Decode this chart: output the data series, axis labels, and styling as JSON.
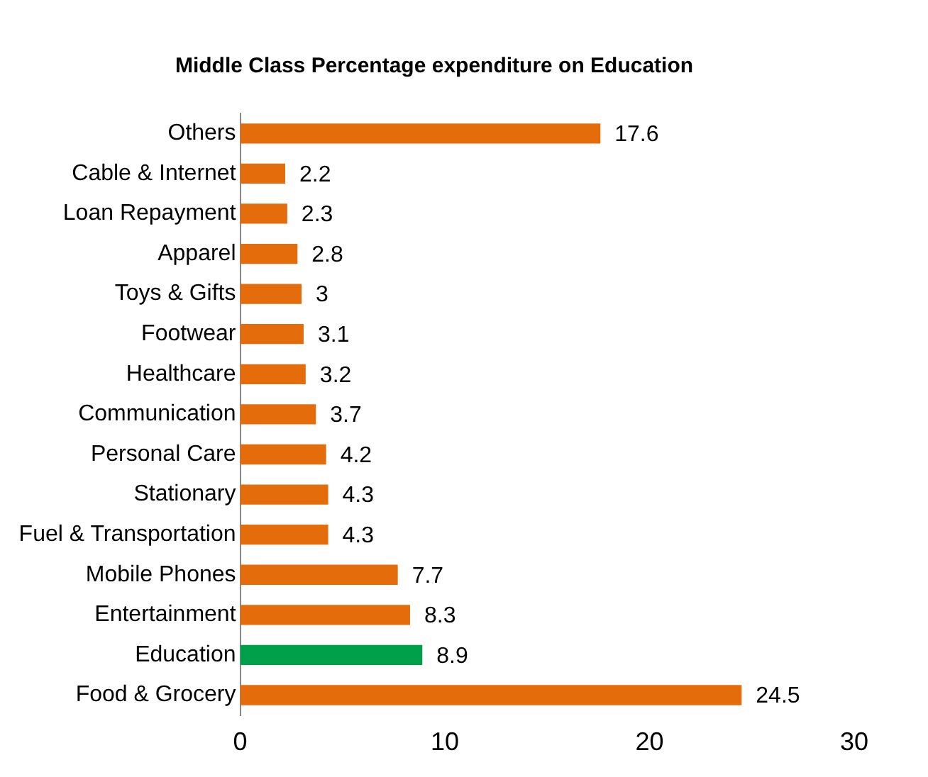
{
  "chart_data": {
    "type": "bar",
    "orientation": "horizontal",
    "title": "Middle Class Percentage expenditure on Education",
    "categories": [
      "Others",
      "Cable & Internet",
      "Loan Repayment",
      "Apparel",
      "Toys & Gifts",
      "Footwear",
      "Healthcare",
      "Communication",
      "Personal Care",
      "Stationary",
      "Fuel & Transportation",
      "Mobile Phones",
      "Entertainment",
      "Education",
      "Food & Grocery"
    ],
    "values": [
      17.6,
      2.2,
      2.3,
      2.8,
      3,
      3.1,
      3.2,
      3.7,
      4.2,
      4.3,
      4.3,
      7.7,
      8.3,
      8.9,
      24.5
    ],
    "colors": [
      "#e46c0a",
      "#e46c0a",
      "#e46c0a",
      "#e46c0a",
      "#e46c0a",
      "#e46c0a",
      "#e46c0a",
      "#e46c0a",
      "#e46c0a",
      "#e46c0a",
      "#e46c0a",
      "#e46c0a",
      "#e46c0a",
      "#00a04a",
      "#e46c0a"
    ],
    "data_labels": true,
    "xlim": [
      0,
      30
    ],
    "xticks": [
      0,
      10,
      20,
      30
    ],
    "grid": false,
    "legend": false
  }
}
